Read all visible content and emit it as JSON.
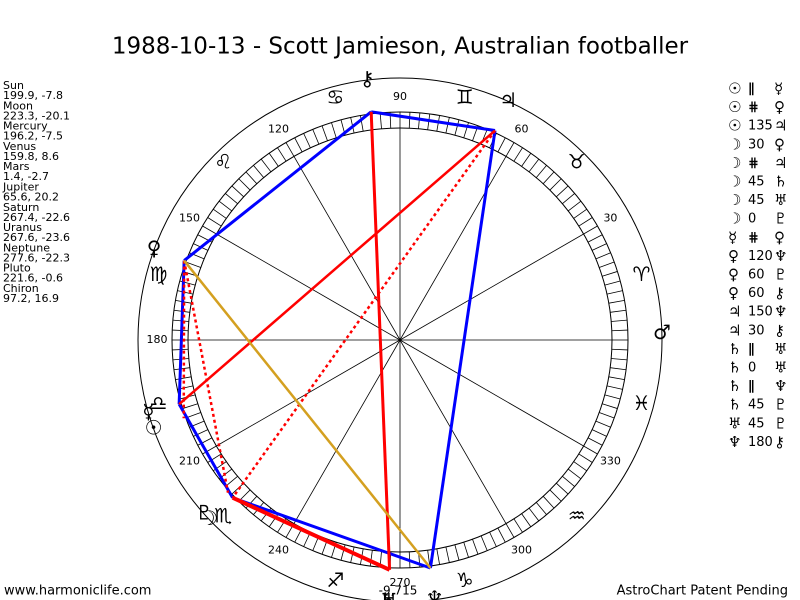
{
  "title": "1988-10-13 - Scott Jamieson, Australian footballer",
  "planets": [
    {
      "name": "Sun",
      "coords": "199.9, -7.8",
      "glyph": "☉"
    },
    {
      "name": "Moon",
      "coords": "223.3, -20.1",
      "glyph": "☽"
    },
    {
      "name": "Mercury",
      "coords": "196.2, -7.5",
      "glyph": "☿"
    },
    {
      "name": "Venus",
      "coords": "159.8, 8.6",
      "glyph": "♀"
    },
    {
      "name": "Mars",
      "coords": "1.4, -2.7",
      "glyph": "♂"
    },
    {
      "name": "Jupiter",
      "coords": "65.6, 20.2",
      "glyph": "♃"
    },
    {
      "name": "Saturn",
      "coords": "267.4, -22.6",
      "glyph": "♄"
    },
    {
      "name": "Uranus",
      "coords": "267.6, -23.6",
      "glyph": "♅"
    },
    {
      "name": "Neptune",
      "coords": "277.6, -22.3",
      "glyph": "♆"
    },
    {
      "name": "Pluto",
      "coords": "221.6, -0.6",
      "glyph": "♇"
    },
    {
      "name": "Chiron",
      "coords": "97.2, 16.9",
      "glyph": "⚷"
    }
  ],
  "aspects": [
    [
      "☉",
      "∥",
      "☿"
    ],
    [
      "☉",
      "⋕",
      "♀"
    ],
    [
      "☉",
      "135",
      "♃"
    ],
    [
      "☽",
      "30",
      "♀"
    ],
    [
      "☽",
      "⋕",
      "♃"
    ],
    [
      "☽",
      "45",
      "♄"
    ],
    [
      "☽",
      "45",
      "♅"
    ],
    [
      "☽",
      "0",
      "♇"
    ],
    [
      "☿",
      "⋕",
      "♀"
    ],
    [
      "♀",
      "120",
      "♆"
    ],
    [
      "♀",
      "60",
      "♇"
    ],
    [
      "♀",
      "60",
      "⚷"
    ],
    [
      "♃",
      "150",
      "♆"
    ],
    [
      "♃",
      "30",
      "⚷"
    ],
    [
      "♄",
      "∥",
      "♅"
    ],
    [
      "♄",
      "0",
      "♅"
    ],
    [
      "♄",
      "∥",
      "♆"
    ],
    [
      "♄",
      "45",
      "♇"
    ],
    [
      "♅",
      "45",
      "♇"
    ],
    [
      "♆",
      "180",
      "⚷"
    ]
  ],
  "degree_labels": [
    "30",
    "60",
    "90",
    "120",
    "150",
    "180",
    "210",
    "240",
    "270",
    "300",
    "330"
  ],
  "zodiac": [
    "♈",
    "♉",
    "♊",
    "♋",
    "♌",
    "♍",
    "♎",
    "♏",
    "♐",
    "♑",
    "♒",
    "♓"
  ],
  "bottom_label": "-9,715",
  "footer": {
    "left": "www.harmoniclife.com",
    "right": "AstroChart Patent Pending"
  }
}
